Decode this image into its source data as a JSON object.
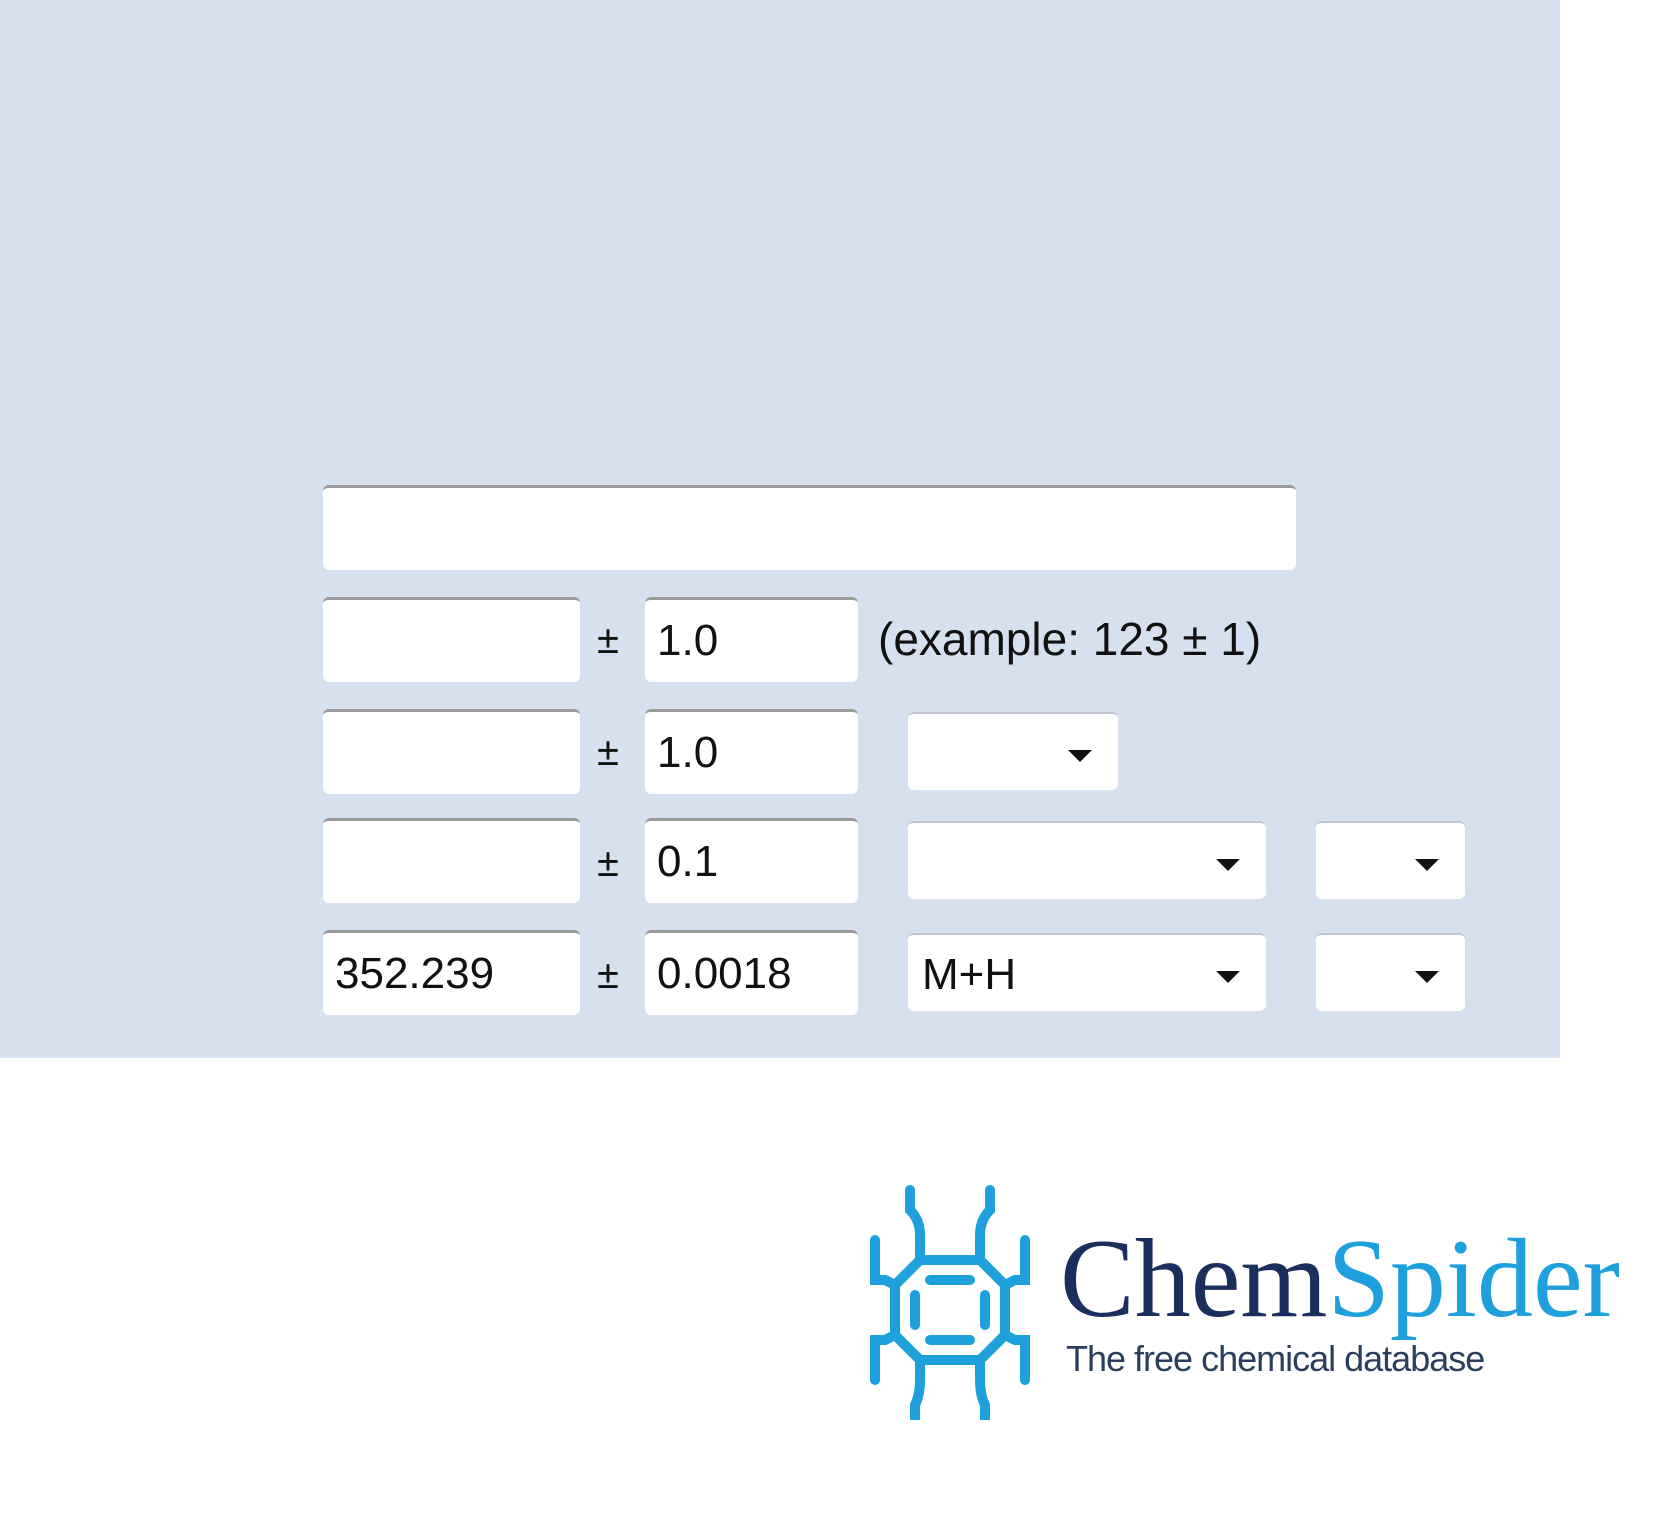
{
  "form": {
    "text_field": {
      "value": ""
    },
    "rows": [
      {
        "value": "",
        "tolerance": "1.0",
        "pm": "±",
        "note": "(example: 123 ± 1)"
      },
      {
        "value": "",
        "tolerance": "1.0",
        "pm": "±",
        "select": ""
      },
      {
        "value": "",
        "tolerance": "0.1",
        "pm": "±",
        "select": "",
        "select2": ""
      },
      {
        "value": "352.239",
        "tolerance": "0.0018",
        "pm": "±",
        "select": "M+H",
        "select2": ""
      }
    ]
  },
  "logo": {
    "name_part1": "Chem",
    "name_part2": "Spider",
    "tagline": "The free chemical database"
  },
  "colors": {
    "panel": "#d6e0ee",
    "brand_dark": "#1a2f5e",
    "brand_light": "#1ea0dc"
  }
}
